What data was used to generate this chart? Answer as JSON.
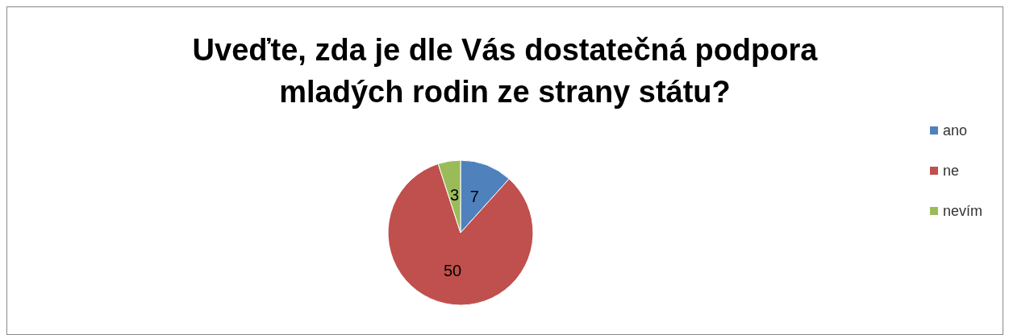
{
  "chart_data": {
    "type": "pie",
    "title": "Uveďte, zda je dle Vás dostatečná podpora\nmladých rodin ze strany státu?",
    "categories": [
      "ano",
      "ne",
      "nevím"
    ],
    "values": [
      7,
      50,
      3
    ],
    "colors": [
      "#4f81bd",
      "#c0504d",
      "#9bbb59"
    ],
    "data_labels": true,
    "legend": "right"
  }
}
